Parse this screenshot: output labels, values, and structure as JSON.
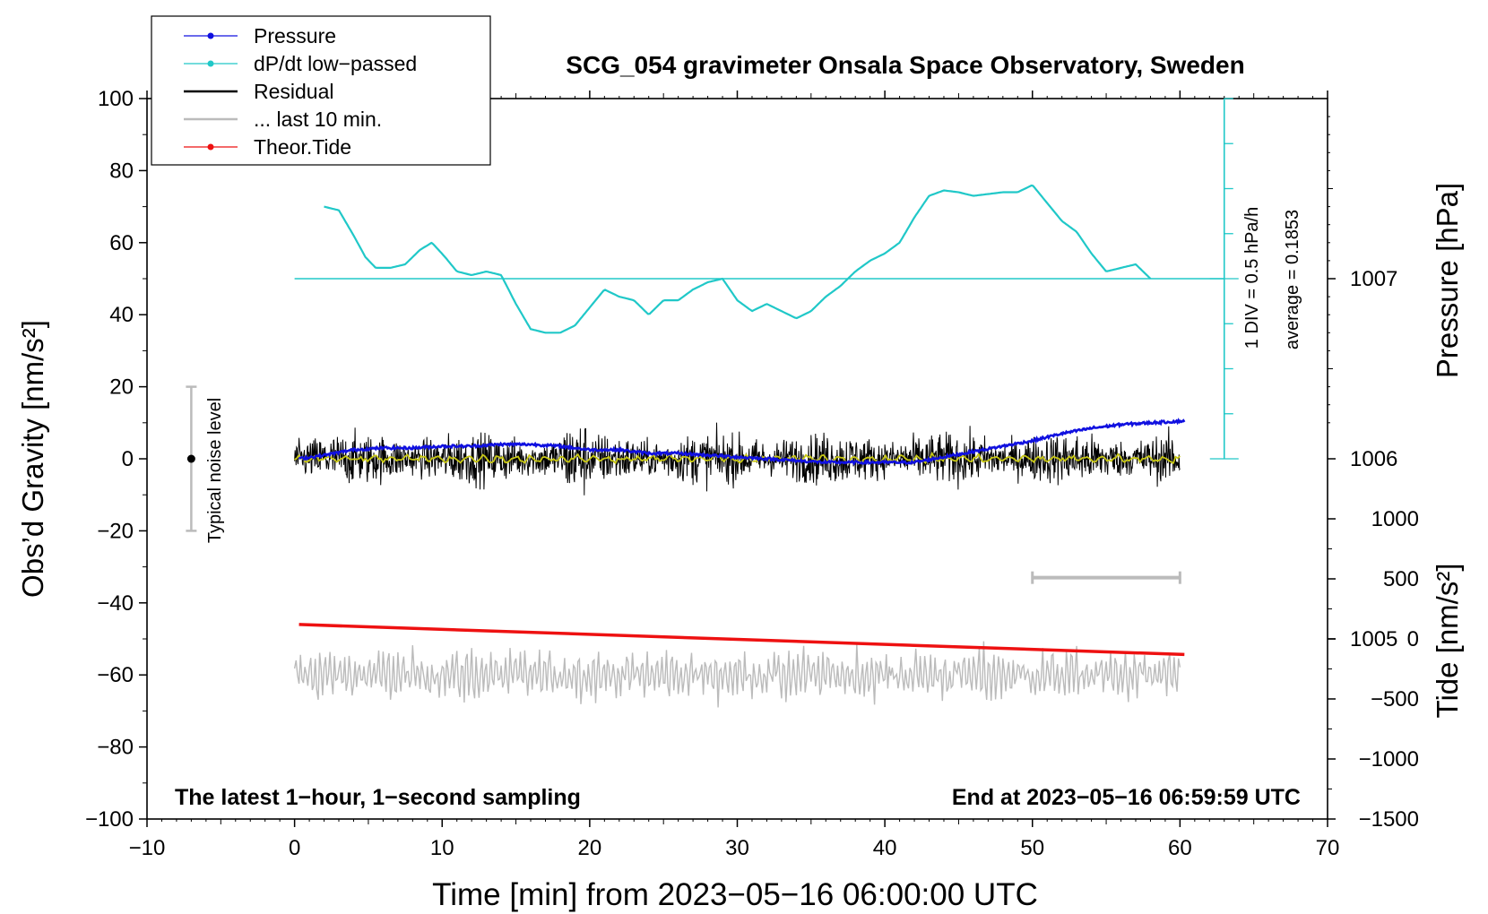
{
  "chart_data": {
    "type": "line",
    "title": "SCG_054 gravimeter Onsala Space Observatory, Sweden",
    "xlabel": "Time [min] from 2023−05−16 06:00:00 UTC",
    "ylabel_left": "Obs’d Gravity [nm/s²]",
    "ylabel_right_top": "Pressure [hPa]",
    "ylabel_right_bottom": "Tide [nm/s²]",
    "xlim": [
      -10,
      70
    ],
    "ylim": [
      -100,
      100
    ],
    "pressure_ylim": [
      1004.0,
      1008.0
    ],
    "tide_ylim": [
      -1500,
      4500
    ],
    "xticks": [
      -10,
      0,
      10,
      20,
      30,
      40,
      50,
      60,
      70
    ],
    "xtick_labels": [
      "−10",
      "0",
      "10",
      "20",
      "30",
      "40",
      "50",
      "60",
      "70"
    ],
    "yticks": [
      -100,
      -80,
      -60,
      -40,
      -20,
      0,
      20,
      40,
      60,
      80,
      100
    ],
    "ytick_labels": [
      "−100",
      "−80",
      "−60",
      "−40",
      "−20",
      "0",
      "20",
      "40",
      "60",
      "80",
      "100"
    ],
    "pressure_ticks": [
      1005,
      1006,
      1007
    ],
    "pressure_tick_labels": [
      "1005",
      "1006",
      "1007"
    ],
    "tide_ticks": [
      -1500,
      -1000,
      -500,
      0,
      500,
      1000
    ],
    "tide_tick_labels": [
      "−1500",
      "−1000",
      "−500",
      "0",
      "500",
      "1000"
    ],
    "legend": {
      "placement": "top-left",
      "entries": [
        {
          "label": "Pressure",
          "color": "#1010e0",
          "marker": true
        },
        {
          "label": "dP/dt low−passed",
          "color": "#20c8c8",
          "marker": true
        },
        {
          "label": "Residual",
          "color": "#000000",
          "marker": false
        },
        {
          "label": "... last 10 min.",
          "color": "#bbbbbb",
          "marker": false
        },
        {
          "label": "Theor.Tide",
          "color": "#ee1111",
          "marker": true
        }
      ]
    },
    "annotations": {
      "noise_label": "Typical noise level",
      "noise_range": [
        -20,
        20
      ],
      "noise_x": -7,
      "dpdt_scale": "1 DIV = 0.5 hPa/h",
      "dpdt_average": "average = 0.1853",
      "bottom_left": "The latest 1−hour, 1−second sampling",
      "bottom_right": "End at 2023−05−16 06:59:59 UTC",
      "last10_bracket": [
        50,
        60
      ]
    },
    "dpdt_axis": {
      "x": 63,
      "bottom": 0,
      "top": 100,
      "baseline": 50
    },
    "series": [
      {
        "name": "Pressure",
        "color": "#1010e0",
        "axis": "pressure",
        "x": [
          0.3,
          2,
          4,
          6,
          8,
          10,
          12,
          14,
          16,
          18,
          20,
          22,
          24,
          26,
          28,
          30,
          32,
          34,
          36,
          38,
          40,
          42,
          44,
          46,
          48,
          50,
          52,
          54,
          56,
          58,
          60.3
        ],
        "values": [
          1006.0,
          1006.02,
          1006.05,
          1006.06,
          1006.06,
          1006.07,
          1006.07,
          1006.08,
          1006.08,
          1006.07,
          1006.05,
          1006.05,
          1006.03,
          1006.03,
          1006.02,
          1006.01,
          1006.0,
          1005.99,
          1005.98,
          1005.98,
          1005.98,
          1005.98,
          1006.01,
          1006.04,
          1006.07,
          1006.1,
          1006.14,
          1006.17,
          1006.19,
          1006.2,
          1006.21
        ]
      },
      {
        "name": "dP/dt low−passed",
        "color": "#20c8c8",
        "axis": "gravity",
        "x": [
          2,
          3,
          4,
          4.8,
          5.5,
          6.5,
          7.5,
          8.5,
          9.3,
          10.2,
          11,
          12,
          13,
          14,
          15,
          16,
          17,
          18,
          19,
          20,
          21,
          22,
          23,
          24,
          25,
          26,
          27,
          28,
          29,
          30,
          31,
          32,
          33,
          34,
          35,
          36,
          37,
          38,
          39,
          40,
          41,
          42,
          43,
          44,
          45,
          46,
          47,
          48,
          49,
          50,
          51,
          52,
          53,
          54,
          55,
          56,
          57,
          58
        ],
        "values": [
          70,
          69,
          62,
          56,
          53,
          53,
          54,
          58,
          60,
          56,
          52,
          51,
          52,
          51,
          43,
          36,
          35,
          35,
          37,
          42,
          47,
          45,
          44,
          40,
          44,
          44,
          47,
          49,
          50,
          44,
          41,
          43,
          41,
          39,
          41,
          45,
          48,
          52,
          55,
          57,
          60,
          67,
          73,
          74.5,
          74,
          73,
          73.5,
          74,
          74,
          76,
          71,
          66,
          63,
          57,
          52,
          53,
          54,
          50
        ]
      },
      {
        "name": "Residual",
        "color": "#000000",
        "axis": "gravity",
        "x": [
          0,
          60
        ],
        "values": [
          0,
          0
        ]
      },
      {
        "name": "Theor.Tide",
        "color": "#ee1111",
        "axis": "tide",
        "x": [
          0.3,
          60.3
        ],
        "values": [
          120,
          -130
        ]
      },
      {
        "name": "... last 10 min.",
        "color": "#bbbbbb",
        "axis": "gravity",
        "x": [
          0,
          60
        ],
        "values": [
          -60,
          -60
        ]
      }
    ]
  }
}
